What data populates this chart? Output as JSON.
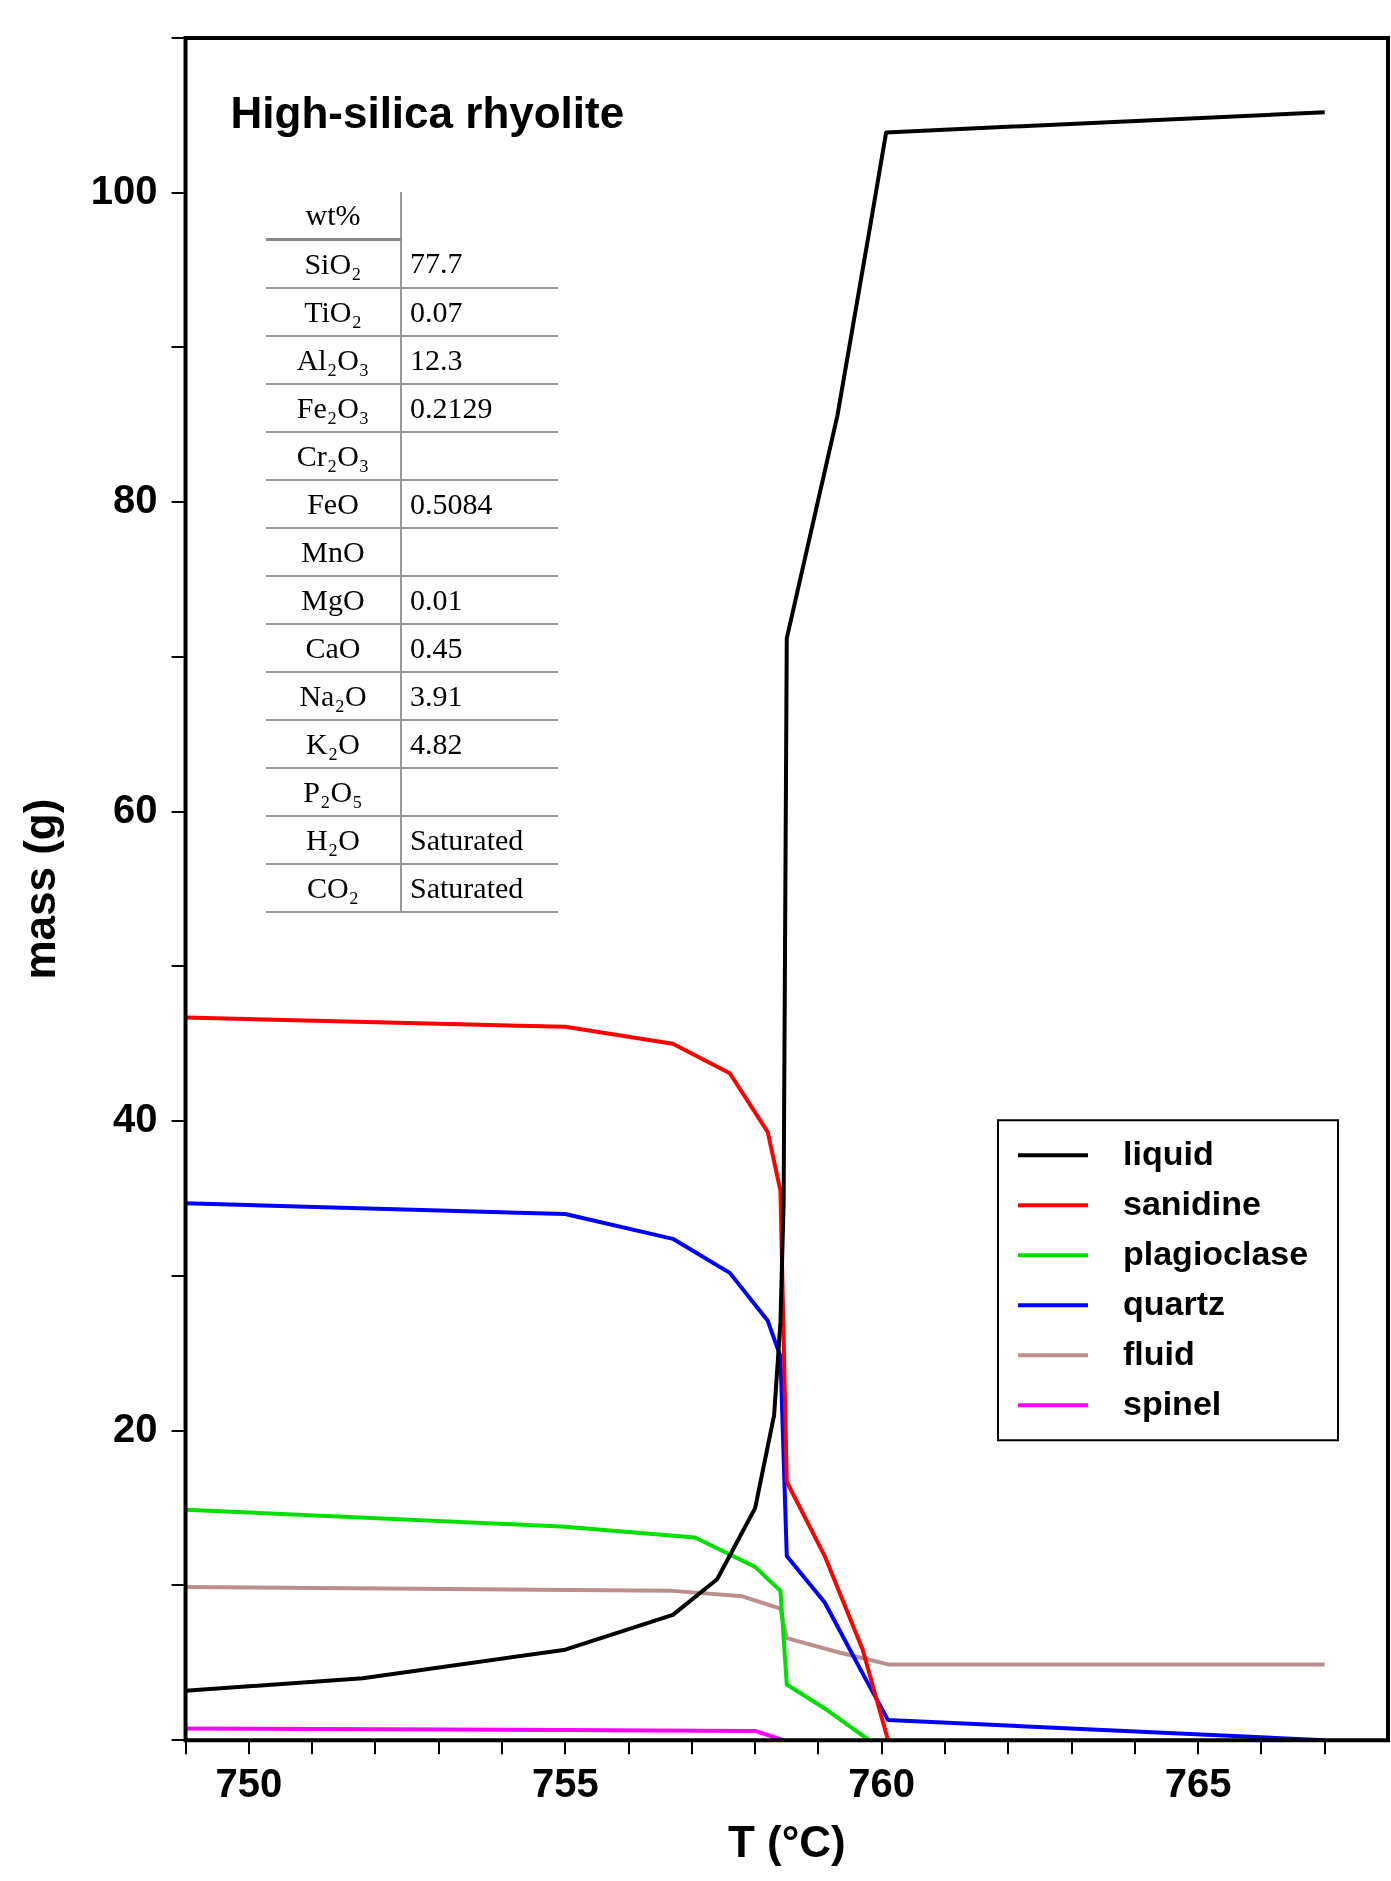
{
  "chart_data": {
    "type": "line",
    "title": "High-silica rhyolite",
    "xlabel": "T (°C)",
    "ylabel": "mass (g)",
    "xlim": [
      749,
      768
    ],
    "ylim": [
      0,
      110
    ],
    "xticks": [
      {
        "value": 749,
        "label": null
      },
      750,
      {
        "value": 751,
        "label": null
      },
      {
        "value": 752,
        "label": null
      },
      {
        "value": 753,
        "label": null
      },
      {
        "value": 754,
        "label": null
      },
      755,
      {
        "value": 756,
        "label": null
      },
      {
        "value": 757,
        "label": null
      },
      {
        "value": 758,
        "label": null
      },
      {
        "value": 759,
        "label": null
      },
      760,
      {
        "value": 761,
        "label": null
      },
      {
        "value": 762,
        "label": null
      },
      {
        "value": 763,
        "label": null
      },
      {
        "value": 764,
        "label": null
      },
      765,
      {
        "value": 766,
        "label": null
      },
      {
        "value": 767,
        "label": null
      }
    ],
    "yticks": [
      {
        "value": 0,
        "label": null
      },
      {
        "value": 10,
        "label": null
      },
      20,
      {
        "value": 30,
        "label": null
      },
      40,
      {
        "value": 50,
        "label": null
      },
      60,
      {
        "value": 70,
        "label": null
      },
      80,
      {
        "value": 90,
        "label": null
      },
      100,
      {
        "value": 110,
        "label": null
      }
    ],
    "grid": false,
    "legend": "bottom right",
    "marker": "none",
    "line_style": "solid",
    "series": [
      {
        "name": "liquid",
        "color": "#000000",
        "x": [
          749,
          751.8,
          755,
          756.7,
          757.4,
          758,
          758.3,
          758.4,
          758.45,
          758.5,
          759.3,
          759.85,
          760.07,
          767
        ],
        "values": [
          3.2,
          4,
          5.85,
          8.1,
          10.4,
          15,
          21,
          27,
          34.7,
          71.2,
          85.6,
          98.6,
          103.9,
          105.2
        ]
      },
      {
        "name": "sanidine",
        "color": "#ff0000",
        "x": [
          749,
          755,
          756.7,
          757.6,
          758.2,
          758.4,
          758.5,
          759.1,
          759.7,
          760.1
        ],
        "values": [
          46.7,
          46.1,
          45,
          43.1,
          39.3,
          35.5,
          16.7,
          11.9,
          5.85,
          0
        ]
      },
      {
        "name": "plagioclase",
        "color": "#00e000",
        "x": [
          749,
          755,
          757.05,
          758,
          758.4,
          758.5,
          759.1,
          759.8
        ],
        "values": [
          14.9,
          13.8,
          13.1,
          11.2,
          9.65,
          3.6,
          2.05,
          0
        ]
      },
      {
        "name": "quartz",
        "color": "#0000ff",
        "x": [
          749,
          755,
          756.7,
          757.6,
          758.2,
          758.4,
          758.5,
          759.1,
          759.7,
          760.1,
          767
        ],
        "values": [
          34.7,
          34,
          32.4,
          30.2,
          27.1,
          24.8,
          11.9,
          8.9,
          4.3,
          1.3,
          0
        ]
      },
      {
        "name": "fluid",
        "color": "#bc8f8f",
        "x": [
          749,
          756.7,
          757.8,
          758.4,
          758.5,
          759.3,
          760.1,
          767
        ],
        "values": [
          9.9,
          9.65,
          9.3,
          8.5,
          6.6,
          5.7,
          4.9,
          4.9
        ]
      },
      {
        "name": "spinel",
        "color": "#ff00ff",
        "x": [
          749,
          758,
          758.45
        ],
        "values": [
          0.76,
          0.6,
          0
        ]
      }
    ],
    "annotations": [
      "wt%",
      "SiO₂\t77.7",
      "TiO₂\t0.07",
      "Al₂O₃\t12.3",
      "Fe₂O₃\t0.2129",
      "Cr₂O₃",
      "FeO\t0.5084",
      "MnO",
      "MgO\t0.01",
      "CaO\t0.45",
      "Na₂O\t3.91",
      "K₂O\t4.82",
      "P₂O₅",
      "H₂O\tSaturated",
      "CO₂\tSaturated"
    ]
  }
}
